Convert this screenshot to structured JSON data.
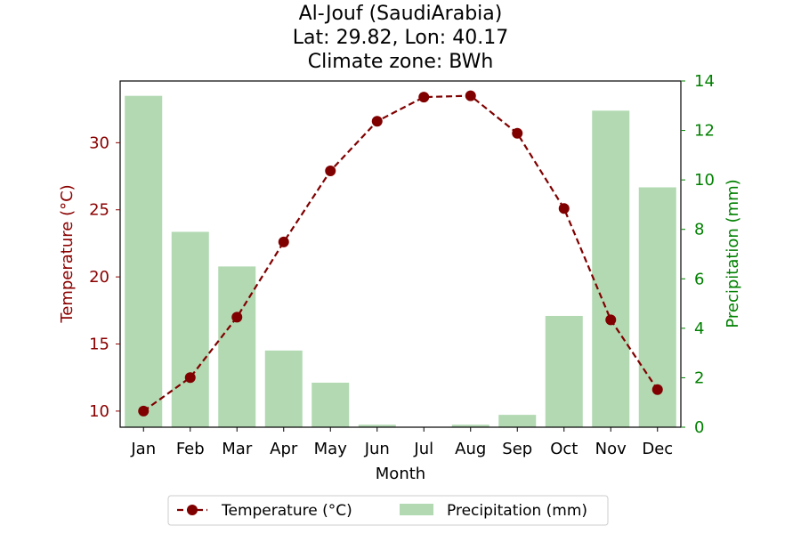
{
  "chart_data": {
    "type": "bar+line",
    "title_lines": [
      "Al-Jouf (SaudiArabia)",
      "Lat: 29.82, Lon: 40.17",
      "Climate zone: BWh"
    ],
    "xlabel": "Month",
    "categories": [
      "Jan",
      "Feb",
      "Mar",
      "Apr",
      "May",
      "Jun",
      "Jul",
      "Aug",
      "Sep",
      "Oct",
      "Nov",
      "Dec"
    ],
    "y_left": {
      "label": "Temperature (°C)",
      "lim": [
        8.8,
        34.6
      ],
      "ticks": [
        10,
        15,
        20,
        25,
        30
      ],
      "color": "#8b0000"
    },
    "y_right": {
      "label": "Precipitation (mm)",
      "lim": [
        0,
        14
      ],
      "ticks": [
        0,
        2,
        4,
        6,
        8,
        10,
        12,
        14
      ],
      "color": "#008000"
    },
    "series": [
      {
        "name": "Temperature (°C)",
        "kind": "line",
        "axis": "left",
        "color": "#800000",
        "style": "dashed",
        "marker": "circle",
        "values": [
          10.0,
          12.5,
          17.0,
          22.6,
          27.9,
          31.6,
          33.4,
          33.5,
          30.7,
          25.1,
          16.8,
          11.6
        ]
      },
      {
        "name": "Precipitation (mm)",
        "kind": "bar",
        "axis": "right",
        "color": "#b2d9b2",
        "values": [
          13.4,
          7.9,
          6.5,
          3.1,
          1.8,
          0.1,
          0.0,
          0.1,
          0.5,
          4.5,
          12.8,
          9.7
        ]
      }
    ],
    "legend": {
      "placement": "bottom-center"
    },
    "grid": false
  }
}
